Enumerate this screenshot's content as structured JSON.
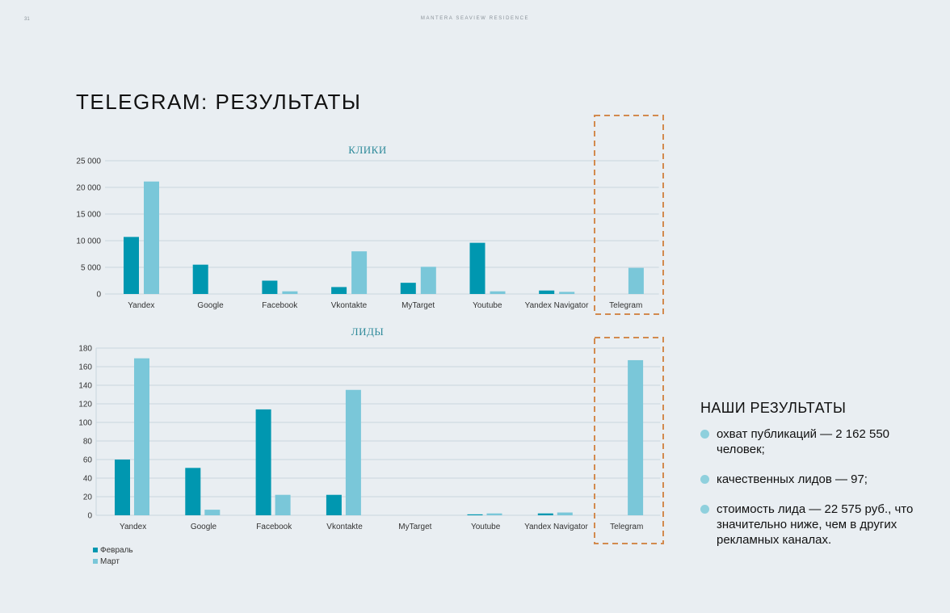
{
  "page_number": "31",
  "header_brand": "MANTERA SEAVIEW RESIDENCE",
  "title": "TELEGRAM: РЕЗУЛЬТАТЫ",
  "colors": {
    "feb": "#0097b0",
    "mar": "#7ac7d9",
    "highlight": "#d28a4e",
    "grid": "#c9d6df"
  },
  "chart_data": [
    {
      "type": "bar",
      "title": "КЛИКИ",
      "categories": [
        "Yandex",
        "Google",
        "Facebook",
        "Vkontakte",
        "MyTarget",
        "Youtube",
        "Yandex Navigator",
        "Telegram"
      ],
      "series": [
        {
          "name": "Февраль",
          "values": [
            10700,
            5500,
            2500,
            1300,
            2100,
            9600,
            650,
            0
          ]
        },
        {
          "name": "Март",
          "values": [
            21100,
            0,
            500,
            8000,
            5100,
            500,
            400,
            4900
          ]
        }
      ],
      "ylim": [
        0,
        25000
      ],
      "yticks": [
        "0",
        "5 000",
        "10 000",
        "15 000",
        "20 000",
        "25 000"
      ],
      "highlight_category": "Telegram"
    },
    {
      "type": "bar",
      "title": "ЛИДЫ",
      "categories": [
        "Yandex",
        "Google",
        "Facebook",
        "Vkontakte",
        "MyTarget",
        "Youtube",
        "Yandex Navigator",
        "Telegram"
      ],
      "series": [
        {
          "name": "Февраль",
          "values": [
            60,
            51,
            114,
            22,
            0,
            1,
            2,
            0
          ]
        },
        {
          "name": "Март",
          "values": [
            169,
            6,
            22,
            135,
            0,
            2,
            3,
            167
          ]
        }
      ],
      "ylim": [
        0,
        180
      ],
      "yticks": [
        "0",
        "20",
        "40",
        "60",
        "80",
        "100",
        "120",
        "140",
        "160",
        "180"
      ],
      "highlight_category": "Telegram"
    }
  ],
  "legend": [
    {
      "label": "Февраль"
    },
    {
      "label": "Март"
    }
  ],
  "results": {
    "heading": "НАШИ РЕЗУЛЬТАТЫ",
    "items": [
      "охват публикаций — 2 162 550 человек;",
      "качественных лидов — 97;",
      "стоимость лида — 22 575 руб., что значительно ниже, чем в других рекламных каналах."
    ]
  }
}
